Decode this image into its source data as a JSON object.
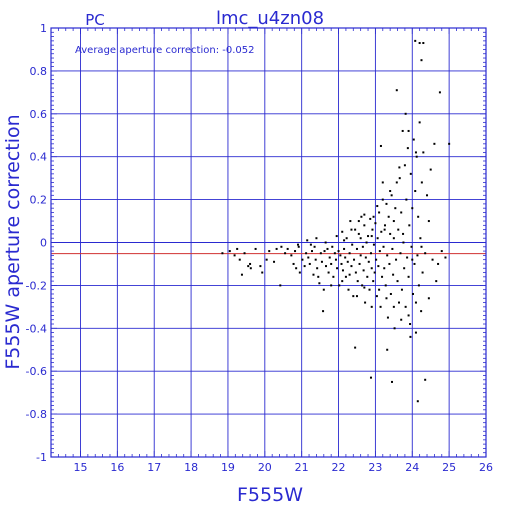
{
  "chart_data": {
    "type": "scatter",
    "title": "lmc_u4zn08",
    "subtitle": "PC",
    "xlabel": "F555W",
    "ylabel": "F555W aperture correction",
    "annotation": "Average aperture correction:  -0.052",
    "xlim": [
      14.2,
      26
    ],
    "ylim": [
      -1,
      1
    ],
    "x_ticks": [
      "15",
      "16",
      "17",
      "18",
      "19",
      "20",
      "21",
      "22",
      "23",
      "24",
      "25",
      "26"
    ],
    "y_ticks": [
      "-1",
      "-0.8",
      "-0.6",
      "-0.4",
      "-0.2",
      "0",
      "0.2",
      "0.4",
      "0.6",
      "0.8",
      "1"
    ],
    "grid": true,
    "reference_line": {
      "y": -0.052,
      "color": "#d03030"
    },
    "zero_line": {
      "y": 0,
      "color": "#2a2ad0"
    },
    "colors": {
      "axes": "#2a2ad0",
      "points": "#000000",
      "background": "#ffffff"
    },
    "points": [
      [
        18.85,
        -0.05
      ],
      [
        19.05,
        -0.04
      ],
      [
        19.18,
        -0.06
      ],
      [
        19.25,
        -0.03
      ],
      [
        19.32,
        -0.08
      ],
      [
        19.38,
        -0.15
      ],
      [
        19.45,
        -0.05
      ],
      [
        19.55,
        -0.11
      ],
      [
        19.62,
        -0.12
      ],
      [
        19.75,
        -0.03
      ],
      [
        19.88,
        -0.11
      ],
      [
        19.93,
        -0.14
      ],
      [
        20.12,
        -0.04
      ],
      [
        20.25,
        -0.09
      ],
      [
        20.32,
        -0.03
      ],
      [
        20.42,
        -0.2
      ],
      [
        20.55,
        -0.05
      ],
      [
        20.62,
        -0.03
      ],
      [
        20.72,
        -0.06
      ],
      [
        20.78,
        -0.1
      ],
      [
        20.82,
        -0.04
      ],
      [
        20.85,
        -0.12
      ],
      [
        20.92,
        -0.02
      ],
      [
        20.95,
        -0.14
      ],
      [
        21.02,
        -0.08
      ],
      [
        21.08,
        -0.11
      ],
      [
        21.12,
        -0.05
      ],
      [
        21.18,
        -0.07
      ],
      [
        21.22,
        -0.1
      ],
      [
        21.28,
        -0.04
      ],
      [
        21.32,
        -0.15
      ],
      [
        21.35,
        -0.02
      ],
      [
        21.38,
        -0.08
      ],
      [
        21.42,
        -0.12
      ],
      [
        21.48,
        -0.19
      ],
      [
        21.52,
        -0.05
      ],
      [
        21.55,
        -0.09
      ],
      [
        21.58,
        -0.32
      ],
      [
        21.62,
        -0.04
      ],
      [
        21.66,
        -0.11
      ],
      [
        21.7,
        -0.03
      ],
      [
        21.73,
        -0.14
      ],
      [
        21.76,
        -0.07
      ],
      [
        21.8,
        -0.1
      ],
      [
        21.83,
        -0.02
      ],
      [
        21.86,
        -0.16
      ],
      [
        21.9,
        -0.05
      ],
      [
        21.93,
        -0.08
      ],
      [
        21.96,
        -0.12
      ],
      [
        22.0,
        -0.04
      ],
      [
        22.02,
        -0.2
      ],
      [
        22.05,
        -0.06
      ],
      [
        22.08,
        -0.1
      ],
      [
        22.1,
        0.05
      ],
      [
        22.12,
        -0.13
      ],
      [
        22.15,
        -0.03
      ],
      [
        22.18,
        -0.07
      ],
      [
        22.2,
        -0.16
      ],
      [
        22.22,
        0.02
      ],
      [
        22.25,
        -0.09
      ],
      [
        22.27,
        -0.22
      ],
      [
        22.3,
        -0.05
      ],
      [
        22.32,
        0.1
      ],
      [
        22.35,
        -0.11
      ],
      [
        22.37,
        -0.01
      ],
      [
        22.4,
        -0.25
      ],
      [
        22.42,
        -0.08
      ],
      [
        22.45,
        0.06
      ],
      [
        22.47,
        -0.14
      ],
      [
        22.5,
        -0.03
      ],
      [
        22.52,
        -0.18
      ],
      [
        22.55,
        0.04
      ],
      [
        22.57,
        -0.1
      ],
      [
        22.6,
        -0.06
      ],
      [
        22.62,
        0.12
      ],
      [
        22.64,
        -0.2
      ],
      [
        22.66,
        -0.02
      ],
      [
        22.68,
        -0.13
      ],
      [
        22.7,
        0.08
      ],
      [
        22.72,
        -0.28
      ],
      [
        22.74,
        -0.07
      ],
      [
        22.76,
        0.0
      ],
      [
        22.78,
        -0.16
      ],
      [
        22.8,
        0.03
      ],
      [
        22.82,
        -0.09
      ],
      [
        22.84,
        -0.22
      ],
      [
        22.86,
        0.11
      ],
      [
        22.88,
        -0.05
      ],
      [
        22.9,
        -0.12
      ],
      [
        22.92,
        0.06
      ],
      [
        22.94,
        -0.18
      ],
      [
        22.96,
        -0.01
      ],
      [
        22.98,
        -0.14
      ],
      [
        23.0,
        0.09
      ],
      [
        23.02,
        -0.08
      ],
      [
        23.04,
        -0.25
      ],
      [
        23.06,
        0.02
      ],
      [
        23.08,
        -0.11
      ],
      [
        23.1,
        0.14
      ],
      [
        23.12,
        -0.04
      ],
      [
        23.14,
        -0.3
      ],
      [
        23.16,
        0.05
      ],
      [
        23.18,
        -0.16
      ],
      [
        23.2,
        0.2
      ],
      [
        23.22,
        -0.02
      ],
      [
        23.24,
        -0.12
      ],
      [
        23.26,
        0.08
      ],
      [
        23.28,
        -0.2
      ],
      [
        23.3,
        0.18
      ],
      [
        23.32,
        -0.06
      ],
      [
        23.34,
        -0.35
      ],
      [
        23.36,
        0.12
      ],
      [
        23.38,
        -0.1
      ],
      [
        23.4,
        0.04
      ],
      [
        23.42,
        -0.24
      ],
      [
        23.44,
        0.22
      ],
      [
        23.46,
        -0.03
      ],
      [
        23.48,
        -0.15
      ],
      [
        23.5,
        0.1
      ],
      [
        23.52,
        -0.4
      ],
      [
        23.54,
        0.16
      ],
      [
        23.56,
        -0.08
      ],
      [
        23.58,
        0.28
      ],
      [
        23.6,
        -0.18
      ],
      [
        23.62,
        0.06
      ],
      [
        23.64,
        -0.28
      ],
      [
        23.66,
        0.3
      ],
      [
        23.68,
        -0.05
      ],
      [
        23.7,
        0.14
      ],
      [
        23.72,
        -0.22
      ],
      [
        23.74,
        0.52
      ],
      [
        23.76,
        0.0
      ],
      [
        23.78,
        -0.12
      ],
      [
        23.8,
        0.36
      ],
      [
        23.82,
        -0.3
      ],
      [
        23.84,
        0.2
      ],
      [
        23.86,
        -0.07
      ],
      [
        23.88,
        0.44
      ],
      [
        23.9,
        -0.16
      ],
      [
        23.92,
        0.08
      ],
      [
        23.94,
        -0.38
      ],
      [
        23.96,
        0.32
      ],
      [
        23.98,
        -0.02
      ],
      [
        24.0,
        0.16
      ],
      [
        24.02,
        -0.24
      ],
      [
        24.04,
        0.48
      ],
      [
        24.06,
        -0.1
      ],
      [
        24.08,
        0.24
      ],
      [
        24.1,
        -0.42
      ],
      [
        24.12,
        0.4
      ],
      [
        24.14,
        -0.06
      ],
      [
        24.16,
        0.12
      ],
      [
        24.18,
        -0.2
      ],
      [
        24.2,
        0.56
      ],
      [
        24.22,
        0.02
      ],
      [
        24.24,
        -0.32
      ],
      [
        24.26,
        0.28
      ],
      [
        24.28,
        -0.14
      ],
      [
        24.3,
        0.42
      ],
      [
        24.35,
        -0.05
      ],
      [
        24.4,
        0.22
      ],
      [
        24.45,
        -0.26
      ],
      [
        24.5,
        0.34
      ],
      [
        24.55,
        -0.08
      ],
      [
        24.6,
        0.46
      ],
      [
        24.65,
        -0.18
      ],
      [
        24.7,
        -0.1
      ],
      [
        24.75,
        0.7
      ],
      [
        24.8,
        -0.04
      ],
      [
        24.9,
        -0.07
      ],
      [
        25.0,
        0.46
      ],
      [
        23.32,
        -0.5
      ],
      [
        22.45,
        -0.49
      ],
      [
        22.88,
        -0.63
      ],
      [
        23.45,
        -0.65
      ],
      [
        24.15,
        -0.74
      ],
      [
        24.35,
        -0.64
      ],
      [
        23.95,
        -0.44
      ],
      [
        24.08,
        0.94
      ],
      [
        24.2,
        0.93
      ],
      [
        24.3,
        0.93
      ],
      [
        24.25,
        0.85
      ],
      [
        23.58,
        0.71
      ],
      [
        23.82,
        0.6
      ],
      [
        23.9,
        0.52
      ],
      [
        24.1,
        0.42
      ],
      [
        23.15,
        0.45
      ],
      [
        23.65,
        0.35
      ],
      [
        23.2,
        0.28
      ],
      [
        23.4,
        0.24
      ],
      [
        23.05,
        0.17
      ],
      [
        22.95,
        0.12
      ],
      [
        22.7,
        0.13
      ],
      [
        22.55,
        0.1
      ],
      [
        22.35,
        0.06
      ],
      [
        22.15,
        0.01
      ],
      [
        21.95,
        0.03
      ],
      [
        21.65,
        0.0
      ],
      [
        21.4,
        0.02
      ],
      [
        21.25,
        -0.01
      ],
      [
        21.15,
        0.01
      ],
      [
        20.9,
        -0.01
      ],
      [
        20.45,
        -0.02
      ],
      [
        20.05,
        -0.08
      ],
      [
        19.6,
        -0.1
      ],
      [
        22.6,
        0.02
      ],
      [
        22.9,
        0.03
      ],
      [
        23.25,
        0.06
      ],
      [
        23.5,
        0.02
      ],
      [
        23.75,
        0.04
      ],
      [
        24.0,
        -0.08
      ],
      [
        24.25,
        -0.02
      ],
      [
        24.45,
        0.1
      ],
      [
        22.1,
        -0.18
      ],
      [
        22.3,
        -0.15
      ],
      [
        22.5,
        -0.25
      ],
      [
        22.7,
        -0.21
      ],
      [
        22.9,
        -0.3
      ],
      [
        23.1,
        -0.22
      ],
      [
        23.3,
        -0.26
      ],
      [
        23.5,
        -0.3
      ],
      [
        23.7,
        -0.36
      ],
      [
        23.9,
        -0.34
      ],
      [
        24.1,
        -0.28
      ],
      [
        21.8,
        -0.2
      ],
      [
        21.6,
        -0.22
      ],
      [
        21.45,
        -0.16
      ]
    ]
  }
}
